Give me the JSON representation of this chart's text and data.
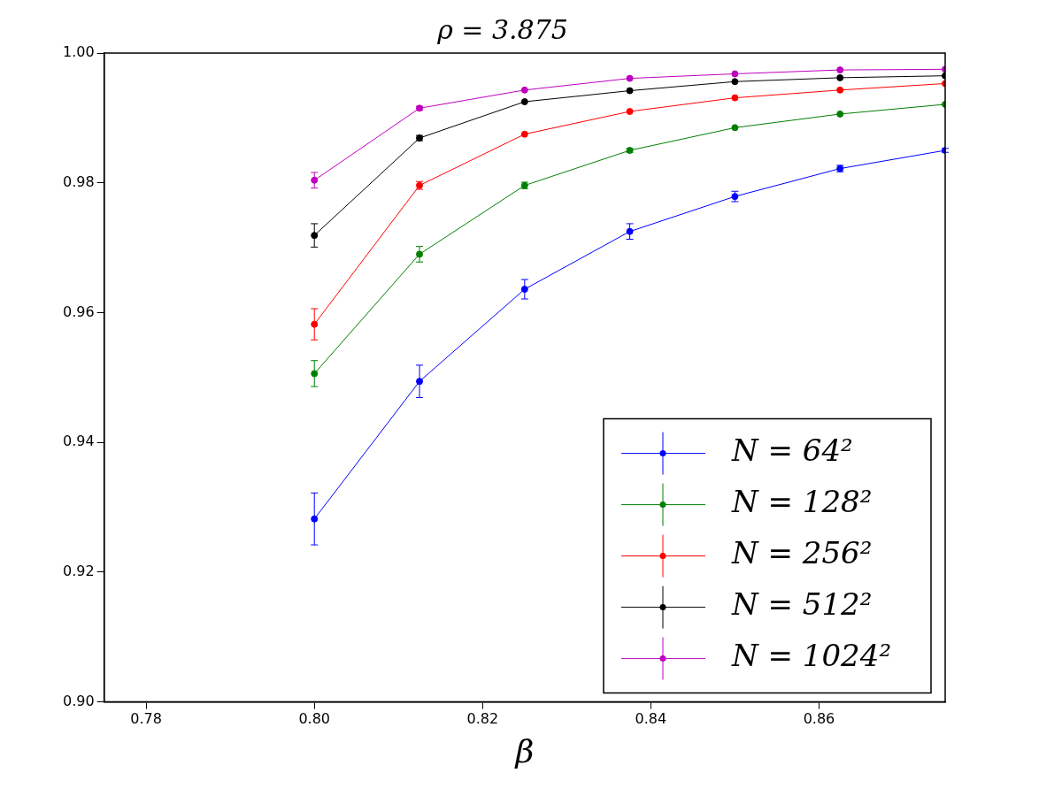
{
  "chart_data": {
    "type": "line",
    "title": "ρ = 3.875",
    "xlabel": "β",
    "x": [
      0.8,
      0.8125,
      0.825,
      0.8375,
      0.85,
      0.8625,
      0.875
    ],
    "xlim": [
      0.775,
      0.875
    ],
    "xticks": [
      0.78,
      {
        "value": 0.8,
        "label": "0.80"
      },
      0.82,
      0.84,
      0.86
    ],
    "ylim": [
      0.9,
      1.0
    ],
    "yticks": [
      {
        "value": 0.9,
        "label": "0.90"
      },
      0.92,
      0.94,
      0.96,
      0.98,
      {
        "value": 1.0,
        "label": "1.00"
      }
    ],
    "grid": false,
    "legend": "bottom right",
    "marker": "circle",
    "line_style": "solid",
    "series": [
      {
        "name": "N = 64²",
        "color": "#0000ff",
        "values": [
          0.9282,
          0.9494,
          0.9636,
          0.9725,
          0.9779,
          0.9822,
          0.985
        ],
        "errors": [
          0.004,
          0.0025,
          0.0015,
          0.0012,
          0.0008,
          0.0005,
          0.0003
        ]
      },
      {
        "name": "N = 128²",
        "color": "#008000",
        "values": [
          0.9506,
          0.969,
          0.9796,
          0.985,
          0.9885,
          0.9906,
          0.9921
        ],
        "errors": [
          0.002,
          0.0012,
          0.0005,
          0.0003,
          null,
          null,
          null
        ]
      },
      {
        "name": "N = 256²",
        "color": "#ff0000",
        "values": [
          0.9582,
          0.9796,
          0.9875,
          0.991,
          0.9931,
          0.9943,
          0.9953
        ],
        "errors": [
          0.0024,
          0.0006,
          null,
          null,
          null,
          null,
          null
        ]
      },
      {
        "name": "N = 512²",
        "color": "#000000",
        "values": [
          0.9719,
          0.9869,
          0.9925,
          0.9942,
          0.9956,
          0.9962,
          0.9965
        ],
        "errors": [
          0.0018,
          0.0004,
          null,
          null,
          null,
          null,
          null
        ]
      },
      {
        "name": "N = 1024²",
        "color": "#bf00bf",
        "values": [
          0.9804,
          0.9915,
          0.9943,
          0.9961,
          0.9968,
          0.9974,
          0.9975
        ],
        "errors": [
          0.0012,
          0.0003,
          null,
          null,
          null,
          null,
          null
        ]
      }
    ]
  }
}
